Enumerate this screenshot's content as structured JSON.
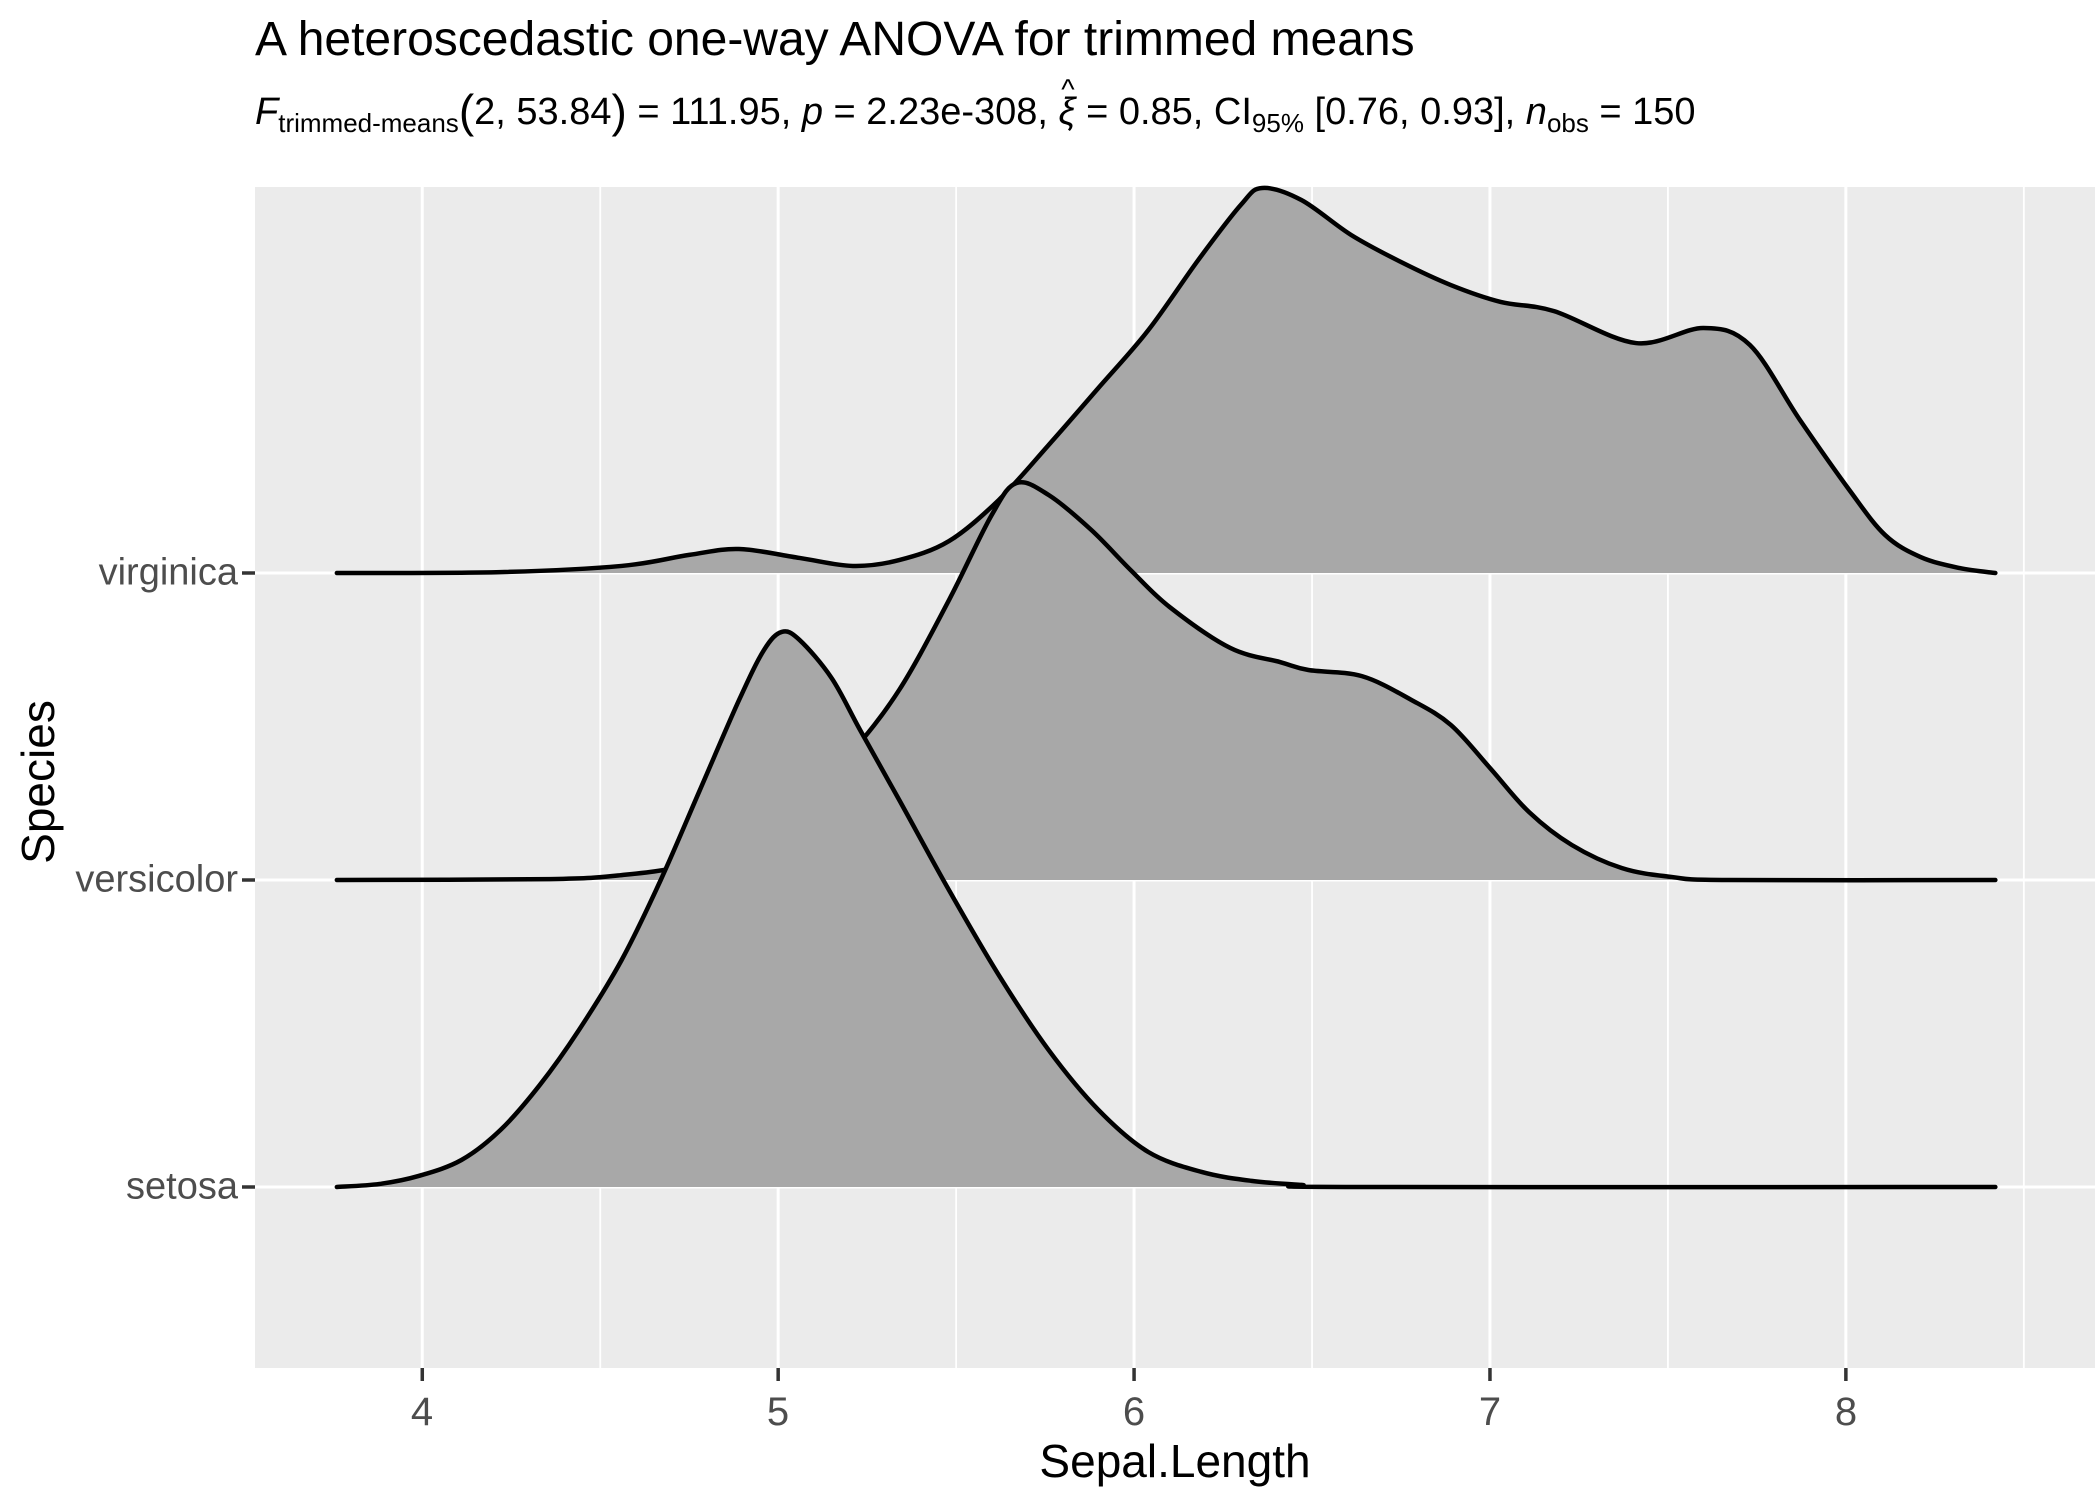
{
  "title": "A heteroscedastic one-way ANOVA for trimmed means",
  "subtitle": {
    "f": "F",
    "f_sub": "trimmed-means",
    "paren_open": "(",
    "df": "2, 53.84",
    "paren_close": ")",
    "f_eq": " = 111.95, ",
    "p": "p",
    "p_eq": " = 2.23e-308, ",
    "xi": "ξ",
    "hat": "^",
    "xi_eq": " = 0.85, ",
    "ci": "CI",
    "ci_sub": "95%",
    "ci_val": " [0.76, 0.93], ",
    "n": "n",
    "n_sub": "obs",
    "n_eq": " = 150"
  },
  "chart_data": {
    "type": "area",
    "subtype": "ridgeline-density",
    "title": "A heteroscedastic one-way ANOVA for trimmed means",
    "subtitle_plain": "F trimmed-means (2, 53.84) = 111.95, p = 2.23e-308, xi-hat = 0.85, CI 95% [0.76, 0.93], n obs = 150",
    "xlabel": "Sepal.Length",
    "ylabel": "Species",
    "xlim": [
      3.53,
      8.7
    ],
    "x_ticks": [
      4,
      5,
      6,
      7,
      8
    ],
    "x_minor_ticks": [
      4.5,
      5.5,
      6.5,
      7.5,
      8.5
    ],
    "categories": [
      "setosa",
      "versicolor",
      "virginica"
    ],
    "grid": true,
    "legend": "none",
    "colors": {
      "panel_bg": "#ebebeb",
      "grid": "#ffffff",
      "ridge_fill": "#a8a8a8",
      "ridge_stroke": "#000000",
      "axis_text": "#4d4d4d",
      "tick_mark": "#333333"
    },
    "series": [
      {
        "name": "virginica",
        "row": 3,
        "points": [
          [
            3.76,
            0
          ],
          [
            4.22,
            0.003
          ],
          [
            4.56,
            0.023
          ],
          [
            4.75,
            0.059
          ],
          [
            4.89,
            0.078
          ],
          [
            5.06,
            0.049
          ],
          [
            5.21,
            0.023
          ],
          [
            5.34,
            0.042
          ],
          [
            5.48,
            0.104
          ],
          [
            5.62,
            0.238
          ],
          [
            5.76,
            0.417
          ],
          [
            5.9,
            0.603
          ],
          [
            6.04,
            0.791
          ],
          [
            6.18,
            1.019
          ],
          [
            6.3,
            1.199
          ],
          [
            6.36,
            1.254
          ],
          [
            6.47,
            1.215
          ],
          [
            6.61,
            1.101
          ],
          [
            6.75,
            1.013
          ],
          [
            6.89,
            0.938
          ],
          [
            7.03,
            0.883
          ],
          [
            7.18,
            0.853
          ],
          [
            7.41,
            0.749
          ],
          [
            7.6,
            0.798
          ],
          [
            7.73,
            0.743
          ],
          [
            7.87,
            0.5
          ],
          [
            8.01,
            0.27
          ],
          [
            8.11,
            0.124
          ],
          [
            8.21,
            0.052
          ],
          [
            8.32,
            0.016
          ],
          [
            8.42,
            0
          ]
        ]
      },
      {
        "name": "versicolor",
        "row": 2,
        "points": [
          [
            3.76,
            0
          ],
          [
            4.36,
            0.003
          ],
          [
            4.56,
            0.016
          ],
          [
            4.73,
            0.046
          ],
          [
            4.89,
            0.121
          ],
          [
            5.06,
            0.244
          ],
          [
            5.2,
            0.407
          ],
          [
            5.34,
            0.619
          ],
          [
            5.48,
            0.912
          ],
          [
            5.6,
            1.189
          ],
          [
            5.67,
            1.293
          ],
          [
            5.76,
            1.254
          ],
          [
            5.88,
            1.14
          ],
          [
            5.99,
            1.01
          ],
          [
            6.1,
            0.889
          ],
          [
            6.27,
            0.756
          ],
          [
            6.41,
            0.71
          ],
          [
            6.49,
            0.684
          ],
          [
            6.64,
            0.664
          ],
          [
            6.78,
            0.586
          ],
          [
            6.89,
            0.505
          ],
          [
            7.0,
            0.365
          ],
          [
            7.11,
            0.221
          ],
          [
            7.23,
            0.114
          ],
          [
            7.37,
            0.039
          ],
          [
            7.51,
            0.01
          ],
          [
            7.67,
            0
          ],
          [
            8.42,
            0
          ]
        ]
      },
      {
        "name": "setosa",
        "row": 1,
        "points": [
          [
            3.76,
            0
          ],
          [
            3.88,
            0.01
          ],
          [
            3.99,
            0.036
          ],
          [
            4.11,
            0.088
          ],
          [
            4.22,
            0.186
          ],
          [
            4.33,
            0.332
          ],
          [
            4.44,
            0.511
          ],
          [
            4.56,
            0.739
          ],
          [
            4.67,
            1.0
          ],
          [
            4.78,
            1.293
          ],
          [
            4.89,
            1.586
          ],
          [
            4.96,
            1.749
          ],
          [
            5.01,
            1.808
          ],
          [
            5.06,
            1.782
          ],
          [
            5.15,
            1.658
          ],
          [
            5.23,
            1.489
          ],
          [
            5.34,
            1.261
          ],
          [
            5.48,
            0.967
          ],
          [
            5.62,
            0.69
          ],
          [
            5.76,
            0.446
          ],
          [
            5.9,
            0.251
          ],
          [
            6.04,
            0.114
          ],
          [
            6.19,
            0.049
          ],
          [
            6.33,
            0.02
          ],
          [
            6.47,
            0.007
          ],
          [
            6.61,
            0
          ],
          [
            8.42,
            0
          ]
        ]
      }
    ]
  }
}
